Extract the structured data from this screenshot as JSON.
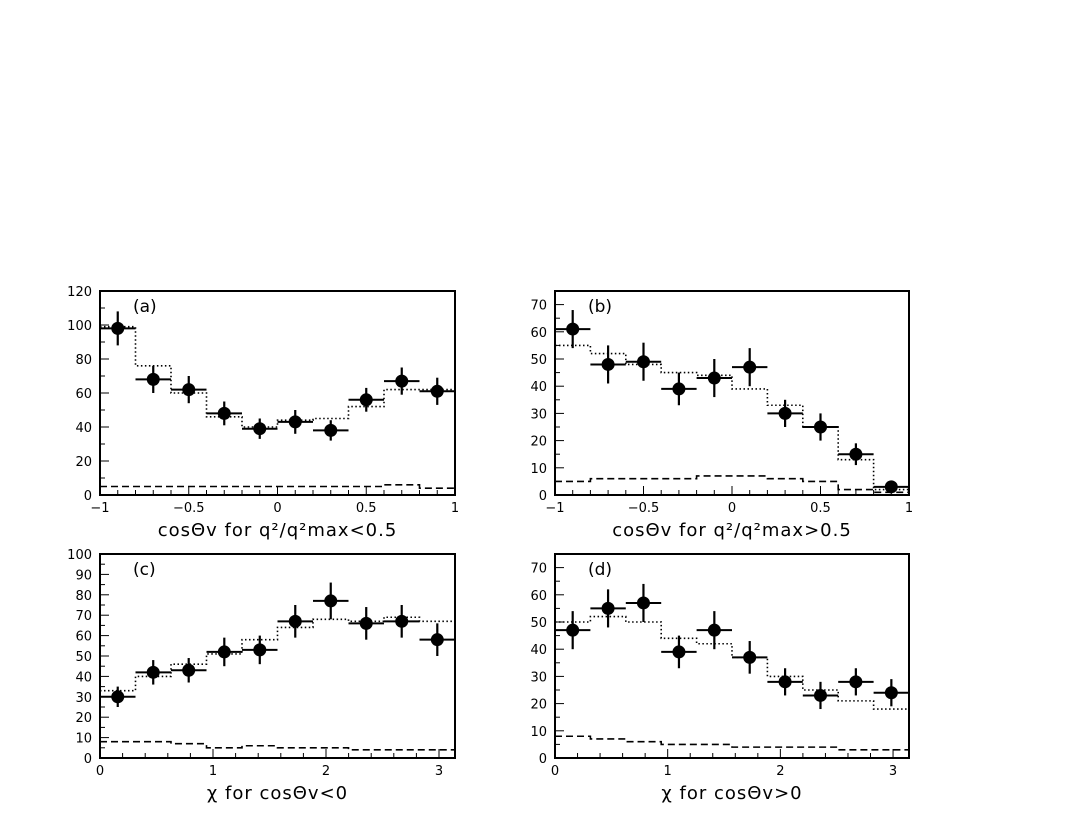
{
  "chart_data": [
    {
      "type": "histogram",
      "panel_label": "(a)",
      "xlabel": "cosΘv for q²/q²max<0.5",
      "xlim": [
        -1,
        1
      ],
      "ylim": [
        0,
        120
      ],
      "xticks": [
        -1,
        -0.5,
        0,
        0.5,
        1
      ],
      "yticks": [
        0,
        20,
        40,
        60,
        80,
        100,
        120
      ],
      "bin_edges": [
        -1,
        -0.8,
        -0.6,
        -0.4,
        -0.2,
        0,
        0.2,
        0.4,
        0.6,
        0.8,
        1
      ],
      "points": [
        {
          "x": -0.9,
          "y": 98,
          "err": 10
        },
        {
          "x": -0.7,
          "y": 68,
          "err": 8
        },
        {
          "x": -0.5,
          "y": 62,
          "err": 8
        },
        {
          "x": -0.3,
          "y": 48,
          "err": 7
        },
        {
          "x": -0.1,
          "y": 39,
          "err": 6
        },
        {
          "x": 0.1,
          "y": 43,
          "err": 7
        },
        {
          "x": 0.3,
          "y": 38,
          "err": 6
        },
        {
          "x": 0.5,
          "y": 56,
          "err": 7
        },
        {
          "x": 0.7,
          "y": 67,
          "err": 8
        },
        {
          "x": 0.9,
          "y": 61,
          "err": 8
        }
      ],
      "dotted_hist": [
        99,
        76,
        60,
        46,
        40,
        44,
        45,
        52,
        62,
        62
      ],
      "dashed_hist": [
        5,
        5,
        5,
        5,
        5,
        5,
        5,
        5,
        6,
        4
      ]
    },
    {
      "type": "histogram",
      "panel_label": "(b)",
      "xlabel": "cosΘv for q²/q²max>0.5",
      "xlim": [
        -1,
        1
      ],
      "ylim": [
        0,
        75
      ],
      "xticks": [
        -1,
        -0.5,
        0,
        0.5,
        1
      ],
      "yticks": [
        0,
        10,
        20,
        30,
        40,
        50,
        60,
        70
      ],
      "bin_edges": [
        -1,
        -0.8,
        -0.6,
        -0.4,
        -0.2,
        0,
        0.2,
        0.4,
        0.6,
        0.8,
        1
      ],
      "points": [
        {
          "x": -0.9,
          "y": 61,
          "err": 7
        },
        {
          "x": -0.7,
          "y": 48,
          "err": 7
        },
        {
          "x": -0.5,
          "y": 49,
          "err": 7
        },
        {
          "x": -0.3,
          "y": 39,
          "err": 6
        },
        {
          "x": -0.1,
          "y": 43,
          "err": 7
        },
        {
          "x": 0.1,
          "y": 47,
          "err": 7
        },
        {
          "x": 0.3,
          "y": 30,
          "err": 5
        },
        {
          "x": 0.5,
          "y": 25,
          "err": 5
        },
        {
          "x": 0.7,
          "y": 15,
          "err": 4
        },
        {
          "x": 0.9,
          "y": 3,
          "err": 1
        }
      ],
      "dotted_hist": [
        55,
        52,
        48,
        45,
        44,
        39,
        33,
        25,
        13,
        2
      ],
      "dashed_hist": [
        5,
        6,
        6,
        6,
        7,
        7,
        6,
        5,
        2,
        1
      ]
    },
    {
      "type": "histogram",
      "panel_label": "(c)",
      "xlabel": "χ for cosΘv<0",
      "xlim": [
        0,
        3.14159
      ],
      "ylim": [
        0,
        100
      ],
      "xticks": [
        0,
        1,
        2,
        3
      ],
      "yticks": [
        0,
        10,
        20,
        30,
        40,
        50,
        60,
        70,
        80,
        90,
        100
      ],
      "bin_edges": [
        0,
        0.31416,
        0.62832,
        0.94248,
        1.25664,
        1.5708,
        1.88496,
        2.19911,
        2.51327,
        2.82743,
        3.14159
      ],
      "points": [
        {
          "x": 0.157,
          "y": 30,
          "err": 5
        },
        {
          "x": 0.471,
          "y": 42,
          "err": 6
        },
        {
          "x": 0.785,
          "y": 43,
          "err": 6
        },
        {
          "x": 1.1,
          "y": 52,
          "err": 7
        },
        {
          "x": 1.414,
          "y": 53,
          "err": 7
        },
        {
          "x": 1.728,
          "y": 67,
          "err": 8
        },
        {
          "x": 2.042,
          "y": 77,
          "err": 9
        },
        {
          "x": 2.356,
          "y": 66,
          "err": 8
        },
        {
          "x": 2.67,
          "y": 67,
          "err": 8
        },
        {
          "x": 2.985,
          "y": 58,
          "err": 8
        }
      ],
      "dotted_hist": [
        33,
        40,
        46,
        51,
        58,
        64,
        68,
        67,
        69,
        67
      ],
      "dashed_hist": [
        8,
        8,
        7,
        5,
        6,
        5,
        5,
        4,
        4,
        4
      ]
    },
    {
      "type": "histogram",
      "panel_label": "(d)",
      "xlabel": "χ for cosΘv>0",
      "xlim": [
        0,
        3.14159
      ],
      "ylim": [
        0,
        75
      ],
      "xticks": [
        0,
        1,
        2,
        3
      ],
      "yticks": [
        0,
        10,
        20,
        30,
        40,
        50,
        60,
        70
      ],
      "bin_edges": [
        0,
        0.31416,
        0.62832,
        0.94248,
        1.25664,
        1.5708,
        1.88496,
        2.19911,
        2.51327,
        2.82743,
        3.14159
      ],
      "points": [
        {
          "x": 0.157,
          "y": 47,
          "err": 7
        },
        {
          "x": 0.471,
          "y": 55,
          "err": 7
        },
        {
          "x": 0.785,
          "y": 57,
          "err": 7
        },
        {
          "x": 1.1,
          "y": 39,
          "err": 6
        },
        {
          "x": 1.414,
          "y": 47,
          "err": 7
        },
        {
          "x": 1.728,
          "y": 37,
          "err": 6
        },
        {
          "x": 2.042,
          "y": 28,
          "err": 5
        },
        {
          "x": 2.356,
          "y": 23,
          "err": 5
        },
        {
          "x": 2.67,
          "y": 28,
          "err": 5
        },
        {
          "x": 2.985,
          "y": 24,
          "err": 5
        }
      ],
      "dotted_hist": [
        50,
        52,
        50,
        44,
        42,
        37,
        30,
        25,
        21,
        18
      ],
      "dashed_hist": [
        8,
        7,
        6,
        5,
        5,
        4,
        4,
        4,
        3,
        3
      ]
    }
  ]
}
